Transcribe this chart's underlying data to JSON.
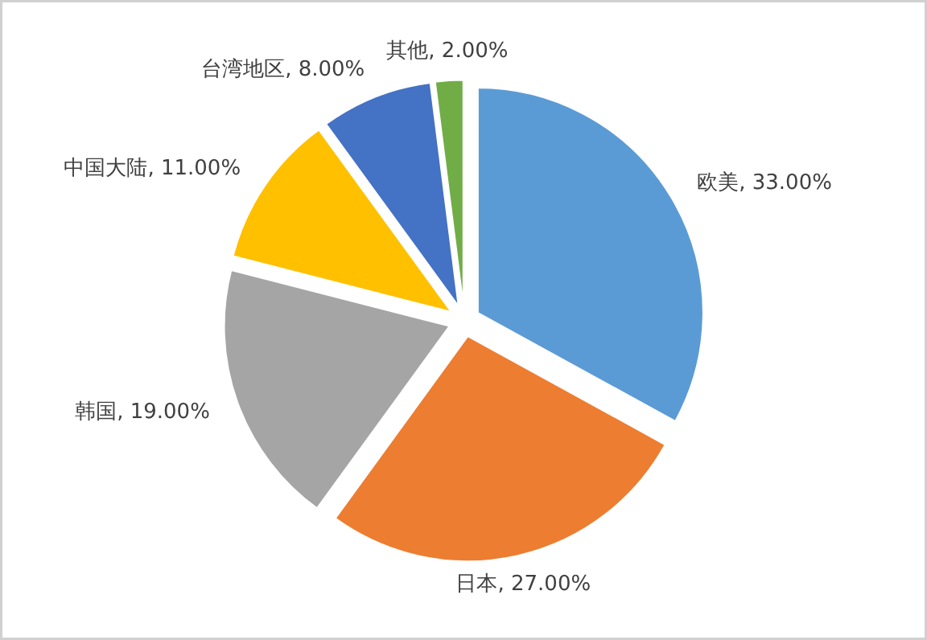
{
  "chart_data": {
    "type": "pie",
    "categories": [
      "欧美",
      "日本",
      "韩国",
      "中国大陆",
      "台湾地区",
      "其他"
    ],
    "values": [
      33,
      27,
      19,
      11,
      8,
      2
    ],
    "value_labels": [
      "33.00%",
      "27.00%",
      "19.00%",
      "11.00%",
      "8.00%",
      "2.00%"
    ],
    "colors": [
      "#5b9bd5",
      "#ed7d31",
      "#a5a5a5",
      "#ffc000",
      "#4472c4",
      "#70ad47"
    ]
  }
}
